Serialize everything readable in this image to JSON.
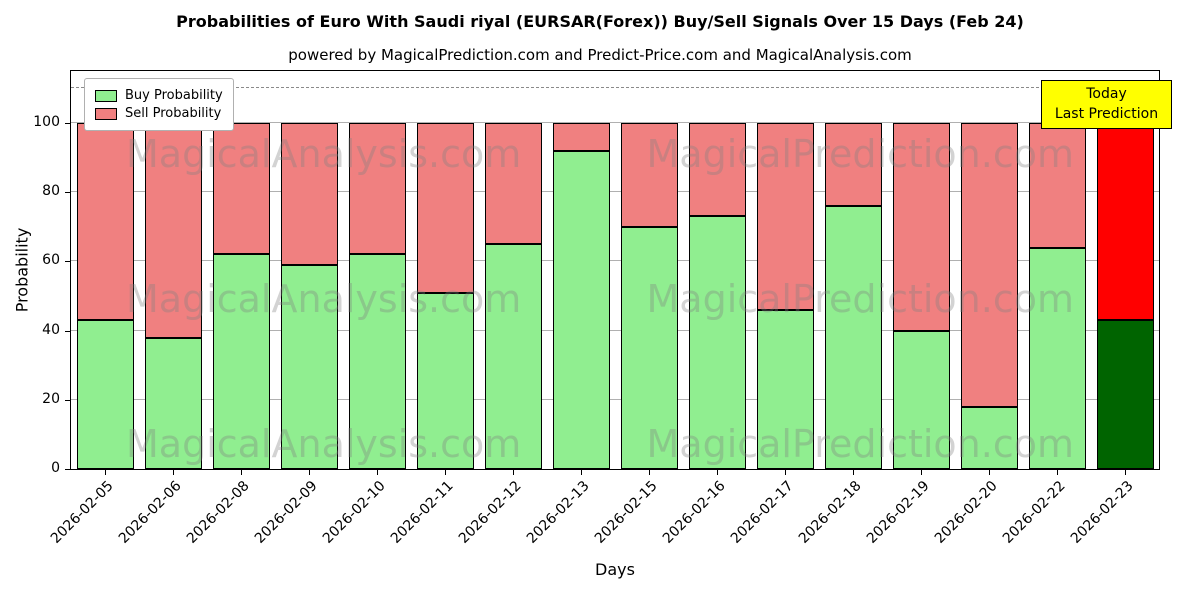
{
  "chart_data": {
    "type": "bar",
    "stacked": true,
    "title": "Probabilities of Euro With Saudi riyal (EURSAR(Forex)) Buy/Sell Signals Over 15 Days (Feb 24)",
    "subtitle": "powered by MagicalPrediction.com and Predict-Price.com and MagicalAnalysis.com",
    "xlabel": "Days",
    "ylabel": "Probability",
    "ylim": [
      0,
      115
    ],
    "yticks": [
      0,
      20,
      40,
      60,
      80,
      100
    ],
    "grid": "horizontal",
    "dashed_line_y": 110,
    "categories": [
      "2026-02-05",
      "2026-02-06",
      "2026-02-08",
      "2026-02-09",
      "2026-02-10",
      "2026-02-11",
      "2026-02-12",
      "2026-02-13",
      "2026-02-15",
      "2026-02-16",
      "2026-02-17",
      "2026-02-18",
      "2026-02-19",
      "2026-02-20",
      "2026-02-22",
      "2026-02-23"
    ],
    "series": [
      {
        "name": "Buy Probability",
        "color": "#90EE90",
        "values": [
          43,
          38,
          62,
          59,
          62,
          51,
          65,
          92,
          70,
          73,
          46,
          76,
          40,
          18,
          64,
          43
        ]
      },
      {
        "name": "Sell Probability",
        "color": "#F08080",
        "values": [
          57,
          62,
          38,
          41,
          38,
          49,
          35,
          8,
          30,
          27,
          54,
          24,
          60,
          82,
          36,
          57
        ]
      }
    ],
    "highlight_last_bar": {
      "buy_color": "#006400",
      "sell_color": "#FF0000"
    },
    "bar_edge_color": "#000000",
    "legend_position": "upper left"
  },
  "legend": {
    "entries": [
      "Buy Probability",
      "Sell Probability"
    ]
  },
  "annotation": {
    "line1": "Today",
    "line2": "Last Prediction",
    "bg": "#FFFF00"
  },
  "watermarks": {
    "left": "MagicalAnalysis.com",
    "right": "MagicalPrediction.com",
    "rows": 3
  }
}
